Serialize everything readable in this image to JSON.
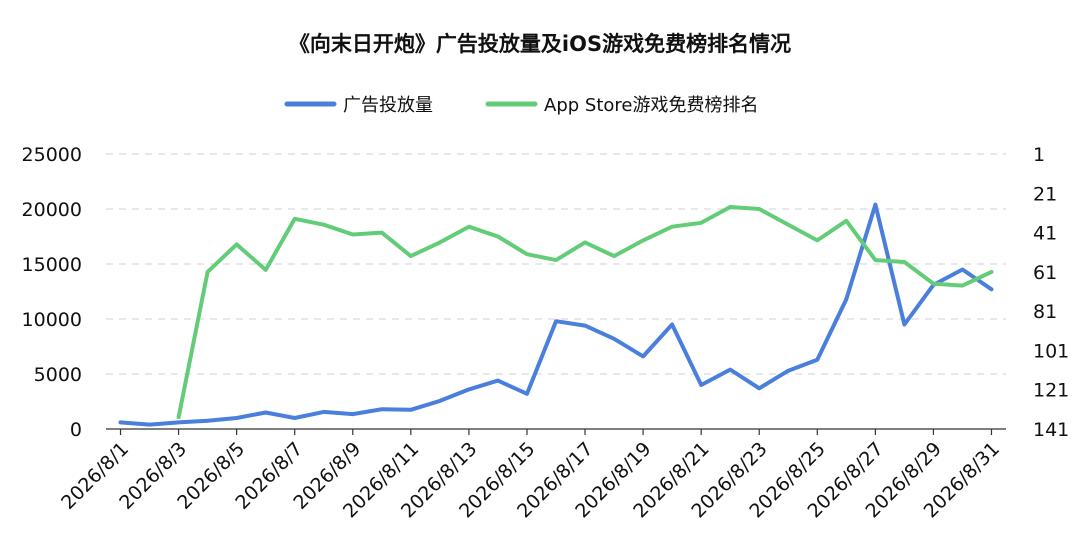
{
  "chart_data": {
    "type": "line",
    "title": "《向末日开炮》广告投放量及iOS游戏免费榜排名情况",
    "legend_position": "top-center",
    "grid": true,
    "x": [
      "2026/8/1",
      "2026/8/2",
      "2026/8/3",
      "2026/8/4",
      "2026/8/5",
      "2026/8/6",
      "2026/8/7",
      "2026/8/8",
      "2026/8/9",
      "2026/8/10",
      "2026/8/11",
      "2026/8/12",
      "2026/8/13",
      "2026/8/14",
      "2026/8/15",
      "2026/8/16",
      "2026/8/17",
      "2026/8/18",
      "2026/8/19",
      "2026/8/20",
      "2026/8/21",
      "2026/8/22",
      "2026/8/23",
      "2026/8/24",
      "2026/8/25",
      "2026/8/26",
      "2026/8/27",
      "2026/8/28",
      "2026/8/29",
      "2026/8/30",
      "2026/8/31"
    ],
    "x_tick_labels": [
      "2026/8/1",
      "2026/8/3",
      "2026/8/5",
      "2026/8/7",
      "2026/8/9",
      "2026/8/11",
      "2026/8/13",
      "2026/8/15",
      "2026/8/17",
      "2026/8/19",
      "2026/8/21",
      "2026/8/23",
      "2026/8/25",
      "2026/8/27",
      "2026/8/29",
      "2026/8/31"
    ],
    "y_left": {
      "min": 0,
      "max": 25000,
      "ticks": [
        "0",
        "5000",
        "10000",
        "15000",
        "20000",
        "25000"
      ]
    },
    "y_right": {
      "min": 1,
      "max": 141,
      "inverted": true,
      "ticks": [
        "1",
        "21",
        "41",
        "61",
        "81",
        "101",
        "121",
        "141"
      ]
    },
    "series": [
      {
        "name": "广告投放量",
        "axis": "left",
        "color": "#4a7fdc",
        "values": [
          600,
          400,
          600,
          750,
          1000,
          1500,
          1000,
          1550,
          1350,
          1800,
          1750,
          2550,
          3600,
          4400,
          3200,
          9800,
          9400,
          8200,
          6600,
          9500,
          4000,
          5400,
          3700,
          5300,
          6300,
          11800,
          20400,
          9500,
          13100,
          14500,
          12700
        ]
      },
      {
        "name": "App Store游戏免费榜排名",
        "axis": "right",
        "color": "#63cc78",
        "values": [
          null,
          null,
          135,
          61,
          47,
          60,
          34,
          37,
          42,
          41,
          53,
          46,
          38,
          43,
          52,
          55,
          46,
          53,
          45,
          38,
          36,
          28,
          29,
          37,
          45,
          35,
          55,
          56,
          67,
          68,
          61
        ]
      }
    ]
  }
}
